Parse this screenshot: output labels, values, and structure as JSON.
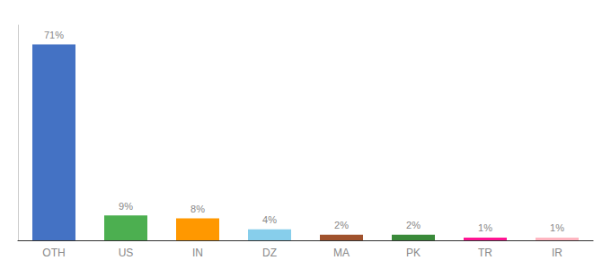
{
  "chart_data": {
    "type": "bar",
    "categories": [
      "OTH",
      "US",
      "IN",
      "DZ",
      "MA",
      "PK",
      "TR",
      "IR"
    ],
    "values": [
      71,
      9,
      8,
      4,
      2,
      2,
      1,
      1
    ],
    "value_labels": [
      "71%",
      "9%",
      "8%",
      "4%",
      "2%",
      "2%",
      "1%",
      "1%"
    ],
    "colors": [
      "#4472C4",
      "#4CAF50",
      "#FF9800",
      "#87CEEB",
      "#A0522D",
      "#3A8A3A",
      "#FF1493",
      "#FFB6C1"
    ],
    "ylim": [
      0,
      78
    ],
    "data_labels": true,
    "tick_labels": "x",
    "grid": false
  }
}
